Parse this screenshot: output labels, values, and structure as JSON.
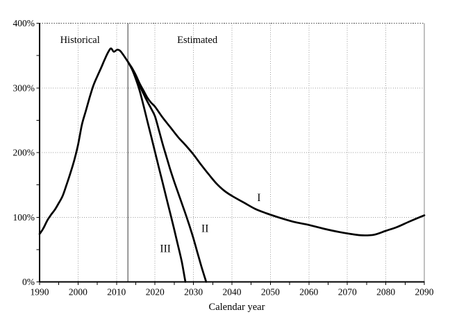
{
  "chart_data": {
    "type": "line",
    "title": "",
    "xlabel": "Calendar year",
    "ylabel": "",
    "xlim": [
      1990,
      2090
    ],
    "ylim": [
      0,
      400
    ],
    "x_ticks": [
      {
        "value": 1990,
        "label": "1990"
      },
      {
        "value": 2000,
        "label": "2000"
      },
      {
        "value": 2010,
        "label": "2010"
      },
      {
        "value": 2020,
        "label": "2020"
      },
      {
        "value": 2030,
        "label": "2030"
      },
      {
        "value": 2040,
        "label": "2040"
      },
      {
        "value": 2050,
        "label": "2050"
      },
      {
        "value": 2060,
        "label": "2060"
      },
      {
        "value": 2070,
        "label": "2070"
      },
      {
        "value": 2080,
        "label": "2080"
      },
      {
        "value": 2090,
        "label": "2090"
      }
    ],
    "x_minor_tick_step": 5,
    "y_ticks": [
      {
        "value": 0,
        "label": "0%"
      },
      {
        "value": 100,
        "label": "100%"
      },
      {
        "value": 200,
        "label": "200%"
      },
      {
        "value": 300,
        "label": "300%"
      },
      {
        "value": 400,
        "label": "400%"
      }
    ],
    "y_minor_tick_step": 50,
    "grid": "dotted",
    "legend": "none",
    "divider_year": 2013,
    "annotations": [
      {
        "text": "Historical",
        "year": 2000.5,
        "pct": 375,
        "size": 14.5
      },
      {
        "text": "Estimated",
        "year": 2031.0,
        "pct": 375,
        "size": 14.5
      },
      {
        "text": "I",
        "year": 2047.0,
        "pct": 131,
        "size": 15.5
      },
      {
        "text": "II",
        "year": 2033.0,
        "pct": 83,
        "size": 15.5
      },
      {
        "text": "III",
        "year": 2022.7,
        "pct": 52,
        "size": 15.5
      }
    ],
    "colors": {
      "curve": "#000000",
      "grid": "#9a9a9a",
      "axis": "#000000",
      "top_border": "#4a4a4a",
      "right_border": "#808080",
      "divider": "#7a7a7a",
      "background": "#ffffff",
      "text": "#000000"
    },
    "series": [
      {
        "name": "historical",
        "label": "Historical",
        "points": [
          [
            1990,
            74
          ],
          [
            1991,
            83
          ],
          [
            1992,
            95
          ],
          [
            1993,
            104
          ],
          [
            1994,
            112
          ],
          [
            1995,
            122
          ],
          [
            1996,
            133
          ],
          [
            1997,
            150
          ],
          [
            1998,
            168
          ],
          [
            1999,
            188
          ],
          [
            2000,
            212
          ],
          [
            2001,
            243
          ],
          [
            2002,
            264
          ],
          [
            2003,
            285
          ],
          [
            2004,
            304
          ],
          [
            2005,
            318
          ],
          [
            2006,
            331
          ],
          [
            2007,
            345
          ],
          [
            2008,
            357
          ],
          [
            2008.6,
            361
          ],
          [
            2009.3,
            356
          ],
          [
            2010.2,
            359
          ],
          [
            2011,
            357
          ],
          [
            2012,
            349
          ],
          [
            2013,
            340
          ]
        ]
      },
      {
        "name": "alternative-I",
        "label": "I",
        "points": [
          [
            2013,
            340
          ],
          [
            2014,
            331
          ],
          [
            2015,
            320
          ],
          [
            2016,
            307
          ],
          [
            2017,
            296
          ],
          [
            2018,
            285
          ],
          [
            2019,
            277
          ],
          [
            2020,
            271
          ],
          [
            2022,
            254
          ],
          [
            2024,
            239
          ],
          [
            2026,
            224
          ],
          [
            2028,
            211
          ],
          [
            2030,
            197
          ],
          [
            2032,
            181
          ],
          [
            2034,
            166
          ],
          [
            2036,
            152
          ],
          [
            2038,
            141
          ],
          [
            2040,
            133
          ],
          [
            2043,
            123
          ],
          [
            2046,
            113
          ],
          [
            2049,
            106
          ],
          [
            2052,
            100
          ],
          [
            2056,
            93
          ],
          [
            2060,
            88
          ],
          [
            2064,
            82
          ],
          [
            2068,
            77
          ],
          [
            2071,
            74
          ],
          [
            2074,
            72
          ],
          [
            2077,
            73
          ],
          [
            2080,
            79
          ],
          [
            2083,
            85
          ],
          [
            2086,
            93
          ],
          [
            2090,
            103
          ]
        ]
      },
      {
        "name": "alternative-II",
        "label": "II",
        "points": [
          [
            2013,
            340
          ],
          [
            2014,
            330
          ],
          [
            2015,
            318
          ],
          [
            2016,
            304
          ],
          [
            2017,
            291
          ],
          [
            2018,
            279
          ],
          [
            2019,
            268
          ],
          [
            2020,
            256
          ],
          [
            2021,
            235
          ],
          [
            2022,
            213
          ],
          [
            2023,
            193
          ],
          [
            2024,
            173
          ],
          [
            2025,
            155
          ],
          [
            2026,
            138
          ],
          [
            2027,
            121
          ],
          [
            2028,
            104
          ],
          [
            2029,
            86
          ],
          [
            2030,
            67
          ],
          [
            2031,
            46
          ],
          [
            2032,
            25
          ],
          [
            2033.3,
            0
          ]
        ]
      },
      {
        "name": "alternative-III",
        "label": "III",
        "points": [
          [
            2013,
            340
          ],
          [
            2014,
            329
          ],
          [
            2015,
            314
          ],
          [
            2016,
            296
          ],
          [
            2017,
            273
          ],
          [
            2018,
            249
          ],
          [
            2019,
            225
          ],
          [
            2020,
            201
          ],
          [
            2021,
            177
          ],
          [
            2022,
            153
          ],
          [
            2023,
            129
          ],
          [
            2024,
            105
          ],
          [
            2025,
            81
          ],
          [
            2026,
            56
          ],
          [
            2027,
            30
          ],
          [
            2027.9,
            0
          ]
        ]
      }
    ]
  }
}
